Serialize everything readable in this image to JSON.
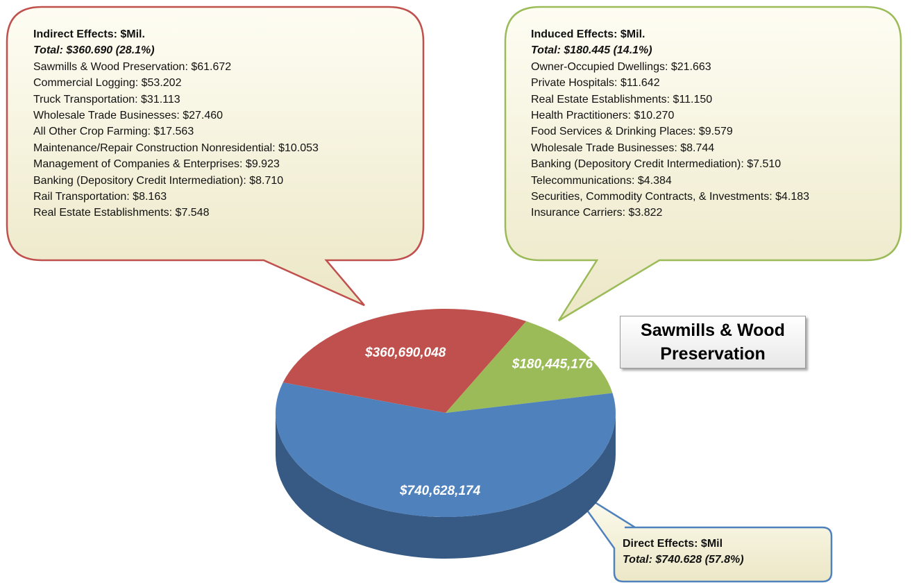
{
  "chart_data": {
    "type": "pie",
    "title": "Sawmills & Wood Preservation",
    "values": [
      360690048,
      180445176,
      740628174
    ],
    "value_labels": [
      "$360,690,048",
      "$180,445,176",
      "$740,628,174"
    ],
    "colors": [
      "#c0504d",
      "#9bbb59",
      "#4f81bd"
    ],
    "callouts": [
      {
        "heading": "Indirect Effects:  $Mil.",
        "total": "Total:  $360.690 (28.1%)",
        "items": [
          "Sawmills & Wood Preservation:  $61.672",
          "Commercial Logging:  $53.202",
          "Truck Transportation:  $31.113",
          "Wholesale Trade Businesses:  $27.460",
          "All Other Crop Farming:  $17.563",
          "Maintenance/Repair Construction Nonresidential:  $10.053",
          "Management of Companies & Enterprises:  $9.923",
          "Banking (Depository Credit Intermediation):  $8.710",
          "Rail Transportation:  $8.163",
          "Real Estate Establishments:  $7.548"
        ]
      },
      {
        "heading": "Induced Effects:  $Mil.",
        "total": "Total:  $180.445 (14.1%)",
        "items": [
          "Owner-Occupied Dwellings:  $21.663",
          "Private Hospitals:  $11.642",
          "Real Estate Establishments:  $11.150",
          "Health Practitioners:  $10.270",
          "Food Services & Drinking Places:  $9.579",
          "Wholesale Trade Businesses:  $8.744",
          "Banking (Depository Credit Intermediation):  $7.510",
          "Telecommunications:  $4.384",
          "Securities, Commodity Contracts, & Investments: $4.183",
          "Insurance Carriers:  $3.822"
        ]
      },
      {
        "heading": "Direct Effects:  $Mil",
        "total": "Total:  $740.628 (57.8%)",
        "items": []
      }
    ]
  }
}
